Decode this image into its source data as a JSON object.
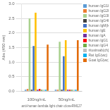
{
  "chart_data": {
    "type": "bar",
    "xlabel": "anti-human lambda light chain cloneRM127",
    "ylabel": "Abs (450 nm)",
    "categories": [
      "100ng/mL",
      "50ng/mL"
    ],
    "series": [
      {
        "name": "human IgG1k",
        "color": "#5b9bd5",
        "values": [
          0.05,
          0.05
        ]
      },
      {
        "name": "human IgG2k",
        "color": "#ed7d31",
        "values": [
          0.07,
          0.05
        ]
      },
      {
        "name": "human IgG3k",
        "color": "#a9d18e",
        "values": [
          2.5,
          1.7
        ]
      },
      {
        "name": "human IgG4k",
        "color": "#404040",
        "values": [
          0.05,
          0.05
        ]
      },
      {
        "name": "human IgM(kx)",
        "color": "#4472c4",
        "values": [
          1.55,
          1.2
        ]
      },
      {
        "name": "human IgE",
        "color": "#ffc000",
        "values": [
          2.7,
          1.75
        ]
      },
      {
        "name": "human IgA",
        "color": "#7030a0",
        "values": [
          0.05,
          0.05
        ]
      },
      {
        "name": "human IgG1",
        "color": "#ff0000",
        "values": [
          0.07,
          0.05
        ]
      },
      {
        "name": "human IgG4",
        "color": "#70ad47",
        "values": [
          0.05,
          0.05
        ]
      },
      {
        "name": "rituximab(ch)",
        "color": "#bfbfbf",
        "values": [
          0.05,
          0.05
        ]
      },
      {
        "name": "Rat IgG(wc)",
        "color": "#00b0f0",
        "values": [
          0.05,
          0.05
        ]
      },
      {
        "name": "Goat IgG(wc)",
        "color": "#e26b0a",
        "values": [
          1.6,
          1.75
        ]
      }
    ],
    "ylim": [
      0,
      3.0
    ],
    "yticks": [
      {
        "value": 0,
        "label": "0.0"
      },
      0.5,
      {
        "value": 1.0,
        "label": "1.0"
      },
      1.5,
      {
        "value": 2.0,
        "label": "2.0"
      },
      2.5,
      {
        "value": 3.0,
        "label": "3.0"
      }
    ],
    "grid": true,
    "legend": "upper right"
  }
}
